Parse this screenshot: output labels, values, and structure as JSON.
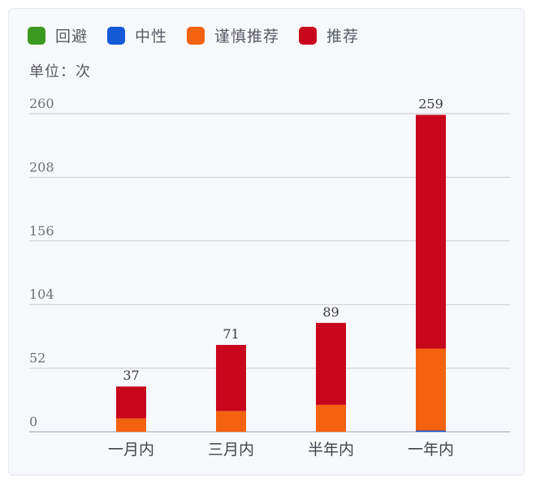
{
  "legend": [
    {
      "label": "回避",
      "color": "#3a9a1f"
    },
    {
      "label": "中性",
      "color": "#1459d6"
    },
    {
      "label": "谨慎推荐",
      "color": "#f2620f"
    },
    {
      "label": "推荐",
      "color": "#c8061c"
    }
  ],
  "unit_label": "单位：次",
  "chart_data": {
    "type": "bar",
    "stacked": true,
    "categories": [
      "一月内",
      "三月内",
      "半年内",
      "一年内"
    ],
    "series": [
      {
        "name": "回避",
        "color": "#3a9a1f",
        "values": [
          0,
          0,
          0,
          0
        ]
      },
      {
        "name": "中性",
        "color": "#1459d6",
        "values": [
          0,
          0,
          0,
          1
        ]
      },
      {
        "name": "谨慎推荐",
        "color": "#f2620f",
        "values": [
          11,
          17,
          22,
          67
        ]
      },
      {
        "name": "推荐",
        "color": "#c8061c",
        "values": [
          26,
          54,
          67,
          191
        ]
      }
    ],
    "totals": [
      37,
      71,
      89,
      259
    ],
    "yticks": [
      0,
      52,
      104,
      156,
      208,
      260
    ],
    "ylim": [
      0,
      260
    ],
    "grid": true,
    "legend_position": "top-left"
  }
}
